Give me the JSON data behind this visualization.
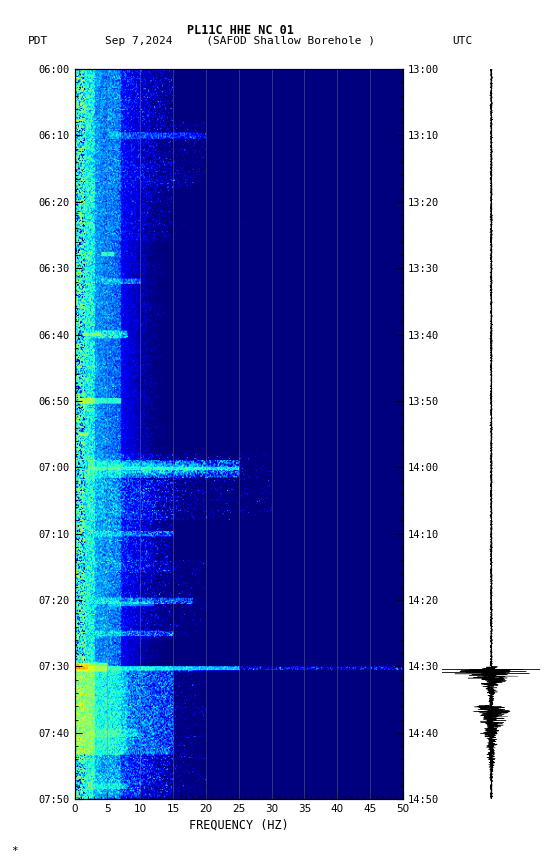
{
  "title_line1": "PL11C HHE NC 01",
  "title_line2_left": "PDT   Sep 7,2024     (SAFOD Shallow Borehole )",
  "title_line2_right": "UTC",
  "xlabel": "FREQUENCY (HZ)",
  "pdt_ticks": [
    "06:00",
    "06:10",
    "06:20",
    "06:30",
    "06:40",
    "06:50",
    "07:00",
    "07:10",
    "07:20",
    "07:30",
    "07:40",
    "07:50"
  ],
  "utc_ticks": [
    "13:00",
    "13:10",
    "13:20",
    "13:30",
    "13:40",
    "13:50",
    "14:00",
    "14:10",
    "14:20",
    "14:30",
    "14:40",
    "14:50"
  ],
  "freq_ticks": [
    0,
    5,
    10,
    15,
    20,
    25,
    30,
    35,
    40,
    45,
    50
  ],
  "background_color": "#ffffff",
  "colormap": "jet",
  "fig_width": 5.52,
  "fig_height": 8.64,
  "dpi": 100,
  "vmin": 0.0,
  "vmax": 2.2
}
